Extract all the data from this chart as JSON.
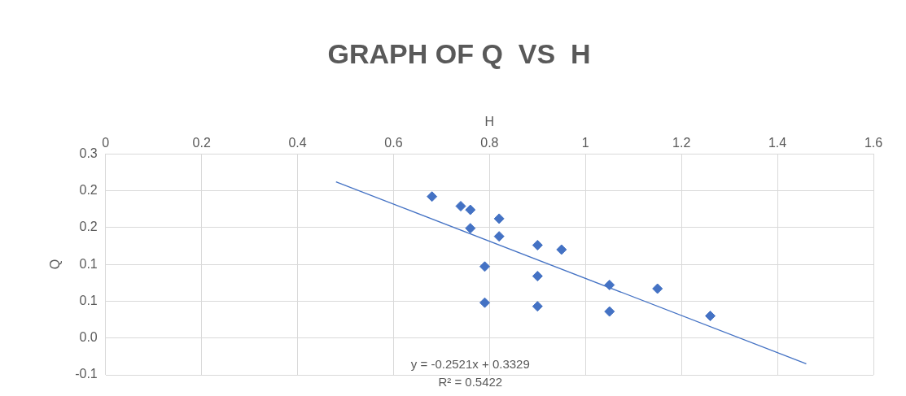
{
  "chart_data": {
    "type": "scatter",
    "title": "GRAPH OF Q  VS  H",
    "xlabel": "H",
    "ylabel": "Q",
    "x": [
      0.68,
      0.74,
      0.76,
      0.76,
      0.82,
      0.82,
      0.79,
      0.79,
      0.9,
      0.9,
      0.9,
      0.95,
      1.05,
      1.05,
      1.15,
      1.26
    ],
    "series": [
      {
        "type": "scatter",
        "marker": "diamond",
        "color": "#4472c4",
        "values": [
          0.192,
          0.179,
          0.174,
          0.149,
          0.162,
          0.138,
          0.097,
          0.048,
          0.126,
          0.084,
          0.043,
          0.12,
          0.072,
          0.036,
          0.067,
          0.03
        ]
      },
      {
        "type": "line",
        "marker": "none",
        "color": "#4472c4",
        "x": [
          0.48,
          1.46
        ],
        "values": [
          0.212,
          -0.035
        ]
      }
    ],
    "xlim": [
      0,
      1.6
    ],
    "xticks": [
      0,
      0.2,
      0.4,
      0.6,
      0.8,
      1,
      1.2,
      1.4,
      1.6
    ],
    "ylim": [
      -0.05,
      0.25
    ],
    "yticks": [
      {
        "value": -0.05,
        "label": "-0.1"
      },
      {
        "value": 0,
        "label": "0.0"
      },
      {
        "value": 0.05,
        "label": "0.1"
      },
      {
        "value": 0.1,
        "label": "0.1"
      },
      {
        "value": 0.15,
        "label": "0.2"
      },
      {
        "value": 0.2,
        "label": "0.2"
      },
      {
        "value": 0.25,
        "label": "0.3"
      }
    ],
    "annotations": [
      "y = -0.2521x + 0.3329",
      "R² = 0.5422"
    ],
    "grid": true,
    "legend": false
  }
}
